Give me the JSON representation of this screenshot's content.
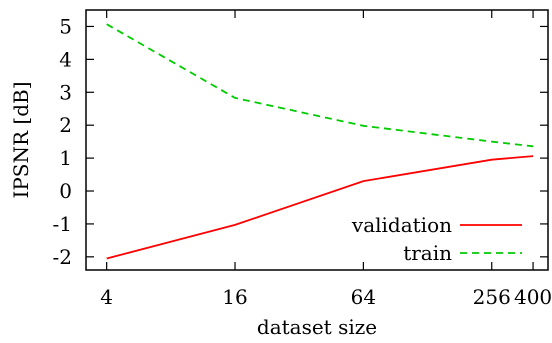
{
  "chart_data": {
    "type": "line",
    "xlabel": "dataset size",
    "ylabel": "IPSNR [dB]",
    "x_scale": "log2",
    "x": [
      4,
      16,
      64,
      256,
      400
    ],
    "x_ticks": [
      "4",
      "16",
      "64",
      "256",
      "400"
    ],
    "xlim": [
      3.2,
      470
    ],
    "ylim": [
      -2.4,
      5.5
    ],
    "y_ticks": [
      "5",
      "4",
      "3",
      "2",
      "1",
      "0",
      "-1",
      "-2"
    ],
    "legend_position": "bottom-right",
    "grid": false,
    "series": [
      {
        "name": "validation",
        "color": "#ff0000",
        "dash": "solid",
        "values": [
          -2.05,
          -1.03,
          0.3,
          0.95,
          1.06
        ]
      },
      {
        "name": "train",
        "color": "#00cc00",
        "dash": "dashed",
        "values": [
          5.07,
          2.83,
          1.98,
          1.5,
          1.36
        ]
      }
    ]
  }
}
